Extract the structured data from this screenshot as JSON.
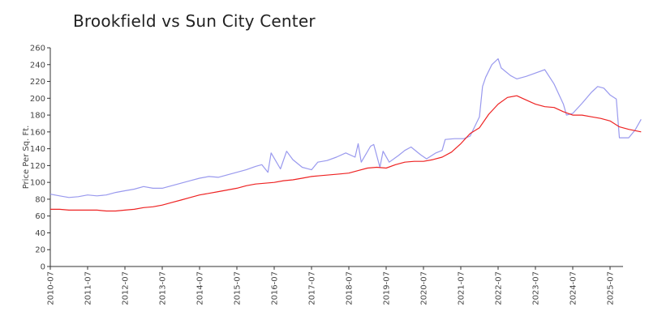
{
  "chart_data": {
    "type": "line",
    "title": "Brookfield vs Sun City Center",
    "xlabel": "",
    "ylabel": "Price Per Sq. Ft.",
    "ylim": [
      0,
      260
    ],
    "yticks": [
      0,
      20,
      40,
      60,
      80,
      100,
      120,
      140,
      160,
      180,
      200,
      220,
      240,
      260
    ],
    "xlim": [
      "2010-07",
      "2025-11"
    ],
    "xticks": [
      "2010-07",
      "2011-07",
      "2012-07",
      "2013-07",
      "2014-07",
      "2015-07",
      "2016-07",
      "2017-07",
      "2018-07",
      "2019-07",
      "2020-07",
      "2021-07",
      "2022-07",
      "2023-07",
      "2024-07",
      "2025-07"
    ],
    "grid": false,
    "legend": "none",
    "series": [
      {
        "color": "#9999ee",
        "points": [
          [
            "2010-07",
            86
          ],
          [
            "2010-10",
            84
          ],
          [
            "2011-01",
            82
          ],
          [
            "2011-04",
            83
          ],
          [
            "2011-07",
            85
          ],
          [
            "2011-10",
            84
          ],
          [
            "2012-01",
            85
          ],
          [
            "2012-04",
            88
          ],
          [
            "2012-07",
            90
          ],
          [
            "2012-10",
            92
          ],
          [
            "2013-01",
            95
          ],
          [
            "2013-04",
            93
          ],
          [
            "2013-07",
            93
          ],
          [
            "2013-10",
            96
          ],
          [
            "2014-01",
            99
          ],
          [
            "2014-04",
            102
          ],
          [
            "2014-07",
            105
          ],
          [
            "2014-10",
            107
          ],
          [
            "2015-01",
            106
          ],
          [
            "2015-04",
            109
          ],
          [
            "2015-07",
            112
          ],
          [
            "2015-10",
            115
          ],
          [
            "2016-01",
            119
          ],
          [
            "2016-03",
            121
          ],
          [
            "2016-05",
            112
          ],
          [
            "2016-06",
            135
          ],
          [
            "2016-09",
            116
          ],
          [
            "2016-11",
            137
          ],
          [
            "2017-01",
            127
          ],
          [
            "2017-04",
            118
          ],
          [
            "2017-07",
            115
          ],
          [
            "2017-09",
            124
          ],
          [
            "2017-12",
            126
          ],
          [
            "2018-03",
            130
          ],
          [
            "2018-06",
            135
          ],
          [
            "2018-09",
            130
          ],
          [
            "2018-10",
            146
          ],
          [
            "2018-11",
            124
          ],
          [
            "2019-02",
            143
          ],
          [
            "2019-03",
            145
          ],
          [
            "2019-05",
            118
          ],
          [
            "2019-06",
            137
          ],
          [
            "2019-08",
            124
          ],
          [
            "2019-11",
            132
          ],
          [
            "2020-01",
            138
          ],
          [
            "2020-03",
            142
          ],
          [
            "2020-06",
            133
          ],
          [
            "2020-08",
            128
          ],
          [
            "2020-11",
            135
          ],
          [
            "2021-01",
            138
          ],
          [
            "2021-02",
            151
          ],
          [
            "2021-05",
            152
          ],
          [
            "2021-08",
            152
          ],
          [
            "2021-10",
            155
          ],
          [
            "2022-01",
            178
          ],
          [
            "2022-02",
            214
          ],
          [
            "2022-03",
            225
          ],
          [
            "2022-05",
            240
          ],
          [
            "2022-07",
            247
          ],
          [
            "2022-08",
            236
          ],
          [
            "2022-11",
            227
          ],
          [
            "2023-01",
            223
          ],
          [
            "2023-04",
            226
          ],
          [
            "2023-07",
            230
          ],
          [
            "2023-10",
            234
          ],
          [
            "2024-01",
            217
          ],
          [
            "2024-04",
            193
          ],
          [
            "2024-05",
            180
          ],
          [
            "2024-07",
            182
          ],
          [
            "2024-10",
            194
          ],
          [
            "2025-01",
            207
          ],
          [
            "2025-03",
            214
          ],
          [
            "2025-05",
            212
          ],
          [
            "2025-07",
            204
          ],
          [
            "2025-09",
            199
          ],
          [
            "2025-10",
            153
          ],
          [
            "2026-01",
            153
          ],
          [
            "2026-03",
            162
          ],
          [
            "2026-05",
            175
          ]
        ]
      },
      {
        "color": "#ee2222",
        "points": [
          [
            "2010-07",
            68
          ],
          [
            "2010-10",
            68
          ],
          [
            "2011-01",
            67
          ],
          [
            "2011-04",
            67
          ],
          [
            "2011-07",
            67
          ],
          [
            "2011-10",
            67
          ],
          [
            "2012-01",
            66
          ],
          [
            "2012-04",
            66
          ],
          [
            "2012-07",
            67
          ],
          [
            "2012-10",
            68
          ],
          [
            "2013-01",
            70
          ],
          [
            "2013-04",
            71
          ],
          [
            "2013-07",
            73
          ],
          [
            "2013-10",
            76
          ],
          [
            "2014-01",
            79
          ],
          [
            "2014-04",
            82
          ],
          [
            "2014-07",
            85
          ],
          [
            "2014-10",
            87
          ],
          [
            "2015-01",
            89
          ],
          [
            "2015-04",
            91
          ],
          [
            "2015-07",
            93
          ],
          [
            "2015-10",
            96
          ],
          [
            "2016-01",
            98
          ],
          [
            "2016-04",
            99
          ],
          [
            "2016-07",
            100
          ],
          [
            "2016-10",
            102
          ],
          [
            "2017-01",
            103
          ],
          [
            "2017-04",
            105
          ],
          [
            "2017-07",
            107
          ],
          [
            "2017-10",
            108
          ],
          [
            "2018-01",
            109
          ],
          [
            "2018-04",
            110
          ],
          [
            "2018-07",
            111
          ],
          [
            "2018-10",
            114
          ],
          [
            "2019-01",
            117
          ],
          [
            "2019-04",
            118
          ],
          [
            "2019-07",
            117
          ],
          [
            "2019-10",
            121
          ],
          [
            "2020-01",
            124
          ],
          [
            "2020-04",
            125
          ],
          [
            "2020-07",
            125
          ],
          [
            "2020-10",
            127
          ],
          [
            "2021-01",
            130
          ],
          [
            "2021-04",
            136
          ],
          [
            "2021-07",
            146
          ],
          [
            "2021-10",
            158
          ],
          [
            "2022-01",
            165
          ],
          [
            "2022-04",
            181
          ],
          [
            "2022-07",
            193
          ],
          [
            "2022-10",
            201
          ],
          [
            "2023-01",
            203
          ],
          [
            "2023-04",
            198
          ],
          [
            "2023-07",
            193
          ],
          [
            "2023-10",
            190
          ],
          [
            "2024-01",
            189
          ],
          [
            "2024-04",
            184
          ],
          [
            "2024-07",
            180
          ],
          [
            "2024-10",
            180
          ],
          [
            "2025-01",
            178
          ],
          [
            "2025-04",
            176
          ],
          [
            "2025-07",
            173
          ],
          [
            "2025-10",
            166
          ],
          [
            "2026-01",
            163
          ],
          [
            "2026-05",
            160
          ]
        ]
      }
    ]
  }
}
